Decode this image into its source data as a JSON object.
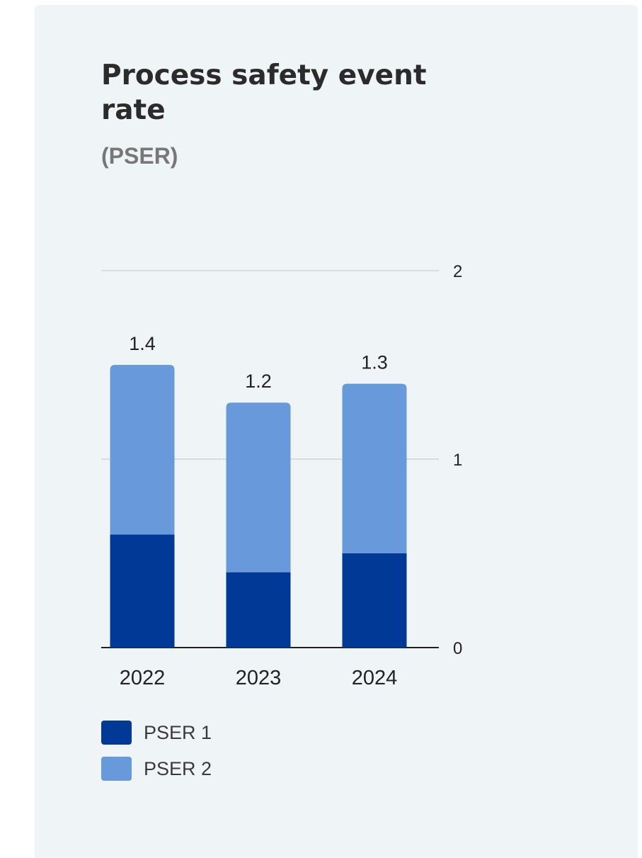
{
  "title": "Process safety event rate",
  "subtitle": "(PSER)",
  "colors": {
    "background": "#eff5f6",
    "pser1": "#003a96",
    "pser2": "#6899da",
    "gridline": "#cdd7dc",
    "axis": "#222222"
  },
  "chart_data": {
    "type": "bar",
    "stacked": true,
    "title": "Process safety event rate",
    "subtitle": "(PSER)",
    "categories": [
      "2022",
      "2023",
      "2024"
    ],
    "series": [
      {
        "name": "PSER 1",
        "values": [
          0.6,
          0.4,
          0.5
        ]
      },
      {
        "name": "PSER 2",
        "values": [
          0.9,
          0.9,
          0.9
        ]
      }
    ],
    "total_labels": [
      "1.4",
      "1.2",
      "1.3"
    ],
    "ylim": [
      0,
      2
    ],
    "yticks": [
      "0",
      "1",
      "2"
    ],
    "y_axis_side": "right",
    "grid": true,
    "legend": "bottom-left"
  }
}
